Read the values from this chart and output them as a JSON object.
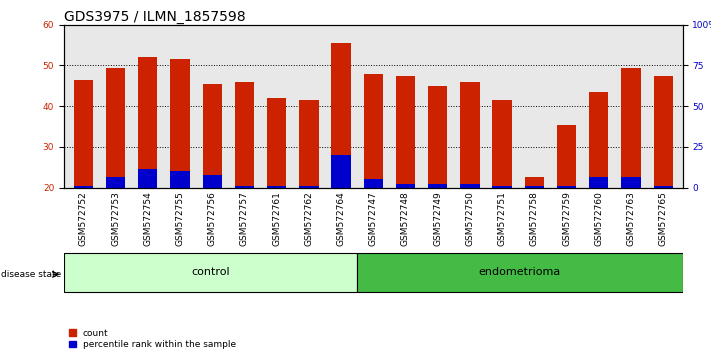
{
  "title": "GDS3975 / ILMN_1857598",
  "samples": [
    "GSM572752",
    "GSM572753",
    "GSM572754",
    "GSM572755",
    "GSM572756",
    "GSM572757",
    "GSM572761",
    "GSM572762",
    "GSM572764",
    "GSM572747",
    "GSM572748",
    "GSM572749",
    "GSM572750",
    "GSM572751",
    "GSM572758",
    "GSM572759",
    "GSM572760",
    "GSM572763",
    "GSM572765"
  ],
  "red_values": [
    46.5,
    49.5,
    52.0,
    51.5,
    45.5,
    46.0,
    42.0,
    41.5,
    55.5,
    48.0,
    47.5,
    45.0,
    46.0,
    41.5,
    22.5,
    35.5,
    43.5,
    49.5,
    47.5
  ],
  "blue_values": [
    20.5,
    22.5,
    24.5,
    24.0,
    23.0,
    20.5,
    20.5,
    20.5,
    28.0,
    22.0,
    21.0,
    21.0,
    21.0,
    20.5,
    20.5,
    20.5,
    22.5,
    22.5,
    20.5
  ],
  "ymin": 20,
  "ymax": 60,
  "yticks_left": [
    20,
    30,
    40,
    50,
    60
  ],
  "yticks_right": [
    0,
    25,
    50,
    75,
    100
  ],
  "right_tick_labels": [
    "0",
    "25",
    "50",
    "75",
    "100%"
  ],
  "control_count": 9,
  "endometrioma_count": 10,
  "bar_color_red": "#CC2200",
  "bar_color_blue": "#0000CC",
  "control_label": "control",
  "endometrioma_label": "endometrioma",
  "disease_state_label": "disease state",
  "legend_count": "count",
  "legend_percentile": "percentile rank within the sample",
  "bg_color_plot": "#E8E8E8",
  "bg_color_control": "#CCFFCC",
  "bg_color_endometrioma": "#44BB44",
  "title_fontsize": 10,
  "tick_fontsize": 6.5,
  "label_fontsize": 8
}
